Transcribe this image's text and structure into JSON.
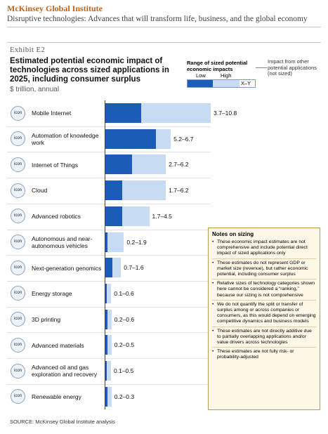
{
  "header": {
    "brand": "McKinsey Global Institute",
    "subtitle": "Disruptive technologies: Advances that will transform life, business, and the global economy"
  },
  "exhibit": {
    "label": "Exhibit E2",
    "title": "Estimated potential economic impact of technologies across sized applications in 2025, including consumer surplus",
    "unit": "$ trillion, annual"
  },
  "legend": {
    "heading": "Range of sized potential economic impacts",
    "low": "Low",
    "high": "High",
    "range_placeholder": "X–Y",
    "other": "Impact from other potential applications (not sized)"
  },
  "icon_text": "icon",
  "chart_data": {
    "type": "bar",
    "orientation": "horizontal",
    "stacked_range": true,
    "categories": [
      "Mobile Internet",
      "Automation of knowledge work",
      "Internet of Things",
      "Cloud",
      "Advanced robotics",
      "Autonomous and near-autonomous vehicles",
      "Next-generation genomics",
      "Energy storage",
      "3D printing",
      "Advanced materials",
      "Advanced oil and gas exploration and recovery",
      "Renewable energy"
    ],
    "series": [
      {
        "name": "Low",
        "values": [
          3.7,
          5.2,
          2.7,
          1.7,
          1.7,
          0.2,
          0.7,
          0.1,
          0.2,
          0.2,
          0.1,
          0.2
        ]
      },
      {
        "name": "High",
        "values": [
          10.8,
          6.7,
          6.2,
          6.2,
          4.5,
          1.9,
          1.6,
          0.6,
          0.6,
          0.5,
          0.5,
          0.3
        ]
      }
    ],
    "range_labels": [
      "3.7–10.8",
      "5.2–6.7",
      "2.7–6.2",
      "1.7–6.2",
      "1.7–4.5",
      "0.2–1.9",
      "0.7–1.6",
      "0.1–0.6",
      "0.2–0.6",
      "0.2–0.5",
      "0.1–0.5",
      "0.2–0.3"
    ],
    "colors": {
      "low": "#1a5cb8",
      "high": "#c7dcf3"
    },
    "xlim": [
      0,
      11
    ]
  },
  "notes": {
    "title": "Notes on sizing",
    "items": [
      "These economic impact estimates are not comprehensive and include potential direct impact of sized applications only",
      "These estimates do not represent GDP or market size (revenue), but rather economic potential, including consumer surplus",
      "Relative sizes of technology categories shown here cannot be considered a “ranking,” because our sizing is not comprehensive",
      "We do not quantify the split or transfer of surplus among or across companies or consumers, as this would depend on emerging competitive dynamics and business models",
      "These estimates are not directly additive due to partially overlapping applications and/or value drivers across technologies",
      "These estimates are not fully risk- or probability-adjusted"
    ]
  },
  "source": "SOURCE: McKinsey Global Institute analysis"
}
